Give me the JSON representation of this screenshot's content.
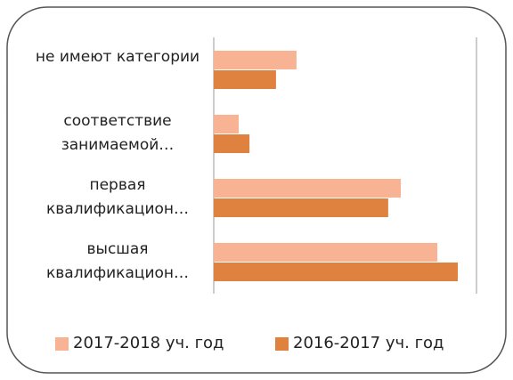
{
  "chart_data": {
    "type": "barh",
    "categories": [
      "не имеют категории",
      "соответствие занимаемой…",
      "первая квалификацион…",
      "высшая квалификацион…"
    ],
    "series": [
      {
        "name": "2017-2018 уч. год",
        "color": "#f8b394",
        "values": [
          31.5,
          9.5,
          71.2,
          85.1
        ]
      },
      {
        "name": "2016-2017 уч. год",
        "color": "#e0823f",
        "values": [
          23.7,
          13.6,
          66.4,
          92.9
        ]
      }
    ],
    "xlim": [
      0,
      100
    ],
    "legend": "bottom"
  }
}
